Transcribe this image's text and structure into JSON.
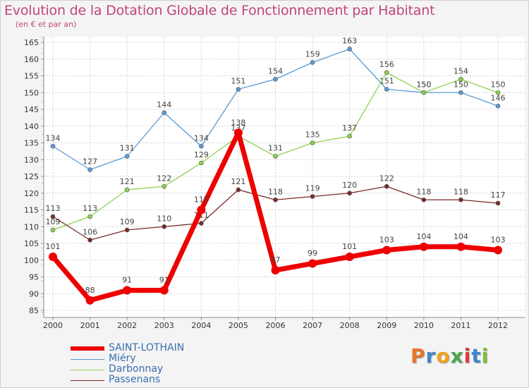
{
  "title": "Evolution de la Dotation Globale de Fonctionnement par Habitant",
  "subtitle": "(en € et par an)",
  "logo": {
    "text": "Proxiti",
    "colors": [
      "#e8742a",
      "#3f86c8",
      "#f2a21b",
      "#4aa84a",
      "#e23b3b",
      "#3f86c8",
      "#7cbd3a"
    ]
  },
  "chart_data": {
    "type": "line",
    "x": [
      "2000",
      "2001",
      "2002",
      "2003",
      "2004",
      "2005",
      "2006",
      "2007",
      "2008",
      "2009",
      "2010",
      "2011",
      "2012"
    ],
    "ylim": [
      85,
      165
    ],
    "yticks": [
      85,
      90,
      95,
      100,
      105,
      110,
      115,
      120,
      125,
      130,
      135,
      140,
      145,
      150,
      155,
      160,
      165
    ],
    "grid": true,
    "legend_position": "bottom-left",
    "series": [
      {
        "name": "SAINT-LOTHAIN",
        "color": "#ee0000",
        "values": [
          101,
          88,
          91,
          91,
          115,
          138,
          97,
          99,
          101,
          103,
          104,
          104,
          103
        ]
      },
      {
        "name": "Miéry",
        "color": "#5b9bd5",
        "values": [
          134,
          127,
          131,
          144,
          134,
          151,
          154,
          159,
          163,
          151,
          150,
          150,
          146
        ]
      },
      {
        "name": "Darbonnay",
        "color": "#8fd14f",
        "values": [
          109,
          113,
          121,
          122,
          129,
          137,
          131,
          135,
          137,
          156,
          150,
          154,
          150
        ]
      },
      {
        "name": "Passenans",
        "color": "#7a2a2a",
        "values": [
          113,
          106,
          109,
          110,
          111,
          121,
          118,
          119,
          120,
          122,
          118,
          118,
          117
        ]
      }
    ]
  }
}
